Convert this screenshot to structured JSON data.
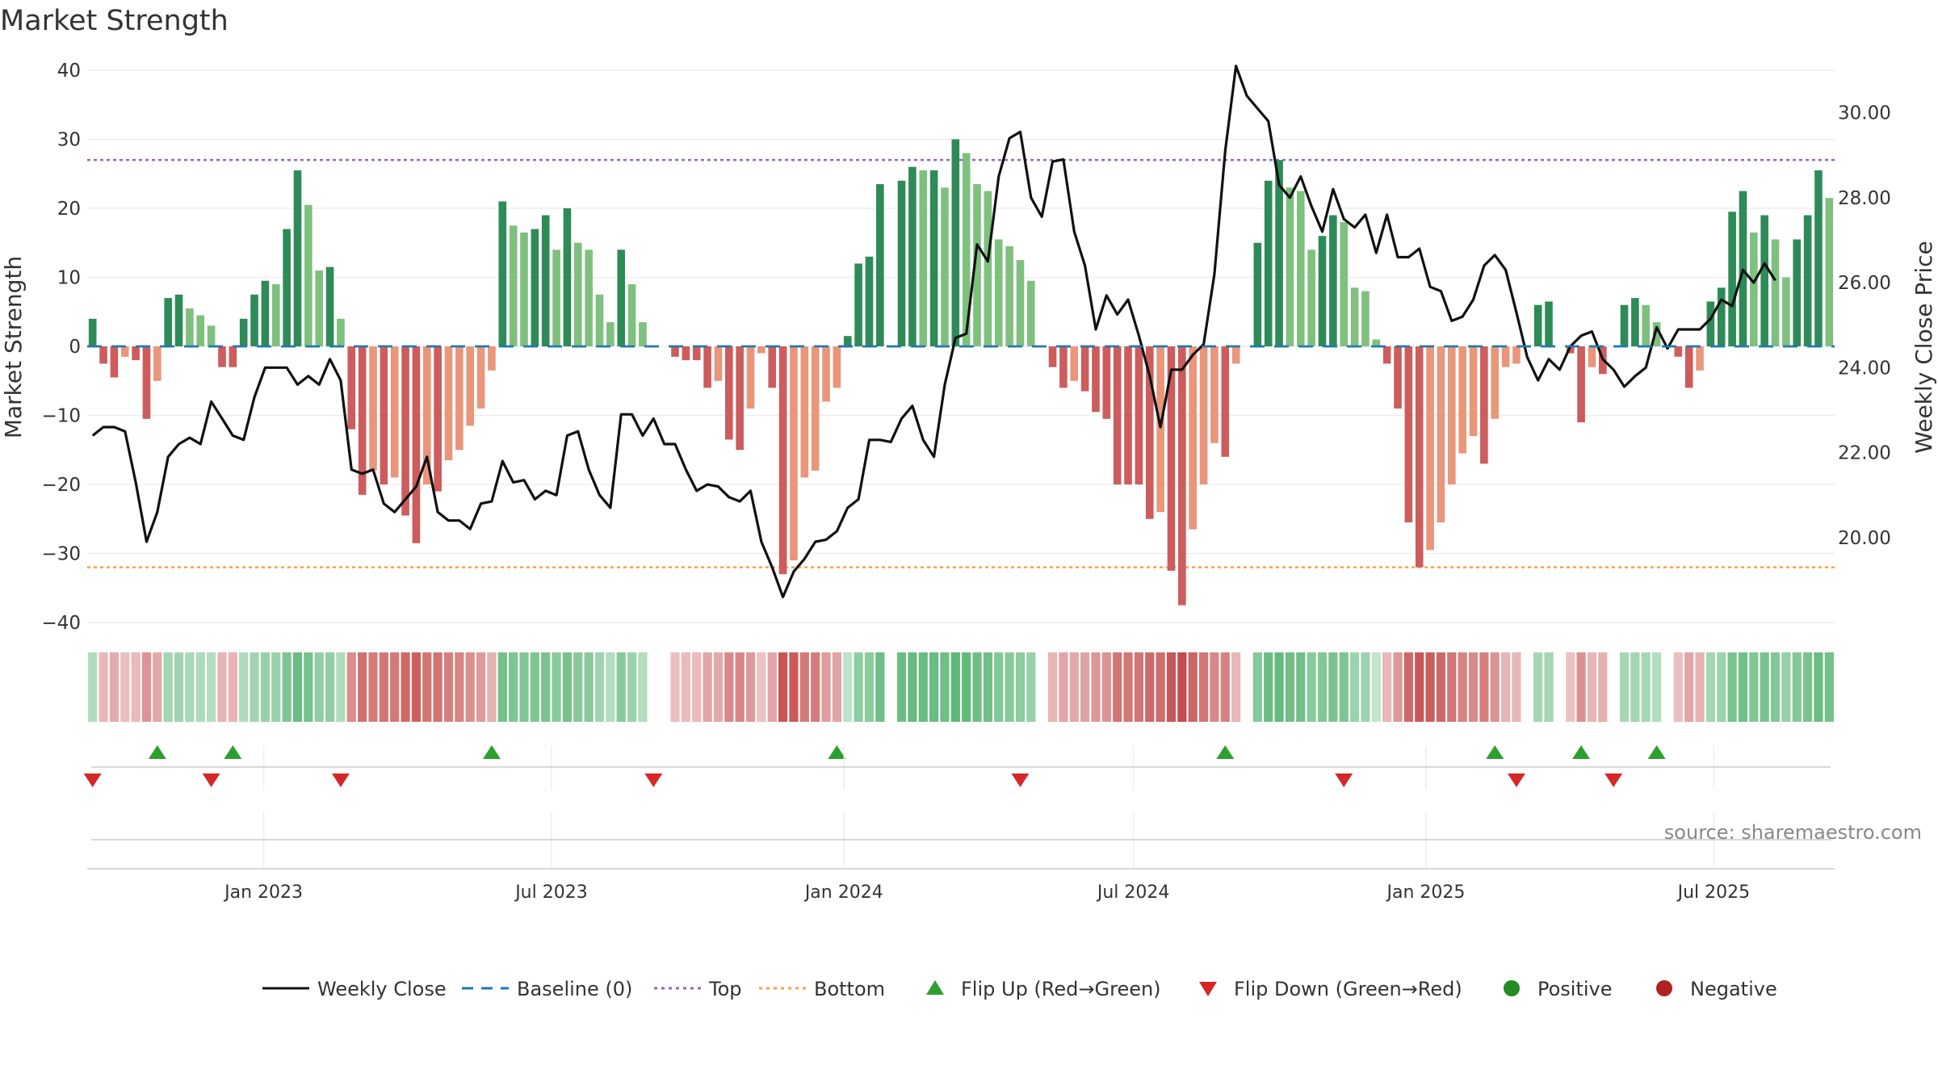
{
  "chart_data": {
    "type": "bar",
    "title": "Market Strength",
    "ylabel_left": "Market Strength",
    "ylabel_right": "Weekly Close Price",
    "ylim_left": [
      -40,
      40
    ],
    "yticks_left": [
      "40",
      "30",
      "20",
      "10",
      "0",
      "−10",
      "−20",
      "−30",
      "−40"
    ],
    "ylim_right": [
      18.0,
      31.0
    ],
    "yticks_right": [
      "30.00",
      "28.00",
      "26.00",
      "24.00",
      "22.00",
      "20.00"
    ],
    "x_start": "2022-09-12",
    "x_end": "2025-09-15",
    "x_ticks": [
      {
        "label": "Jan 2023",
        "date": "2023-01-01"
      },
      {
        "label": "Jul 2023",
        "date": "2023-07-01"
      },
      {
        "label": "Jan 2024",
        "date": "2024-01-01"
      },
      {
        "label": "Jul 2024",
        "date": "2024-07-01"
      },
      {
        "label": "Jan 2025",
        "date": "2025-01-01"
      },
      {
        "label": "Jul 2025",
        "date": "2025-07-01"
      }
    ],
    "top_level": 27,
    "bottom_level": -32,
    "strength": [
      4,
      -2.5,
      -4.5,
      -1.5,
      -2,
      -10.5,
      -5,
      7,
      7.5,
      5.5,
      4.5,
      3,
      -3,
      -3,
      4,
      7.5,
      9.5,
      9,
      17,
      25.5,
      20.5,
      11,
      11.5,
      4,
      -12,
      -21.5,
      -18,
      -20,
      -19,
      -24.5,
      -28.5,
      -20,
      -21,
      -16.5,
      -15,
      -11.5,
      -9,
      -3.5,
      21,
      17.5,
      16.5,
      17,
      19,
      14,
      20,
      15,
      14,
      7.5,
      3.5,
      14,
      9,
      3.5,
      0,
      0,
      -1.5,
      -2,
      -2,
      -6,
      -5,
      -13.5,
      -15,
      -9,
      -1,
      -6,
      -33,
      -31,
      -19,
      -18,
      -8,
      -6,
      1.5,
      12,
      13,
      23.5,
      0,
      24,
      26,
      25.5,
      25.5,
      23,
      30,
      28,
      23.5,
      22.5,
      15.5,
      14.5,
      12.5,
      9.5,
      0,
      -3,
      -6,
      -5,
      -6.5,
      -9.5,
      -10.5,
      -20,
      -20,
      -20,
      -25,
      -24,
      -32.5,
      -37.5,
      -26.5,
      -20,
      -14,
      -16,
      -2.5,
      0,
      15,
      24,
      27,
      23,
      22.5,
      14,
      16,
      19,
      18,
      8.5,
      8,
      1,
      -2.5,
      -9,
      -25.5,
      -32,
      -29.5,
      -25.5,
      -20,
      -15.5,
      -13,
      -17,
      -10.5,
      -3,
      -2.5,
      0,
      6,
      6.5,
      0,
      -1,
      -11,
      -3,
      -4,
      0,
      6,
      7,
      6,
      3.5,
      0,
      -1.5,
      -6,
      -3.5,
      6.5,
      8.5,
      19.5,
      22.5,
      16.5,
      19,
      15.5,
      10,
      15.5,
      19,
      25.5,
      21.5
    ],
    "close_price": [
      22.4,
      22.6,
      22.6,
      22.5,
      21.3,
      19.9,
      20.6,
      21.9,
      22.2,
      22.35,
      22.2,
      23.2,
      22.8,
      22.4,
      22.3,
      23.3,
      24.0,
      24.0,
      24.0,
      23.6,
      23.8,
      23.6,
      24.2,
      23.7,
      21.6,
      21.5,
      21.6,
      20.8,
      20.6,
      20.9,
      21.2,
      21.9,
      20.6,
      20.4,
      20.4,
      20.2,
      20.8,
      20.85,
      21.8,
      21.3,
      21.35,
      20.9,
      21.1,
      21.0,
      22.4,
      22.5,
      21.6,
      21.0,
      20.7,
      22.9,
      22.9,
      22.4,
      22.8,
      22.2,
      22.2,
      21.6,
      21.1,
      21.25,
      21.2,
      20.95,
      20.85,
      21.1,
      19.9,
      19.3,
      18.6,
      19.2,
      19.5,
      19.9,
      19.95,
      20.15,
      20.7,
      20.9,
      22.3,
      22.3,
      22.25,
      22.8,
      23.1,
      22.3,
      21.9,
      23.6,
      24.7,
      24.8,
      26.9,
      26.5,
      28.5,
      29.4,
      29.55,
      28.0,
      27.55,
      28.85,
      28.9,
      27.2,
      26.4,
      24.9,
      25.7,
      25.25,
      25.6,
      24.75,
      23.8,
      22.6,
      23.95,
      23.95,
      24.3,
      24.55,
      26.2,
      29.1,
      31.1,
      30.4,
      30.1,
      29.8,
      28.3,
      28.0,
      28.5,
      27.8,
      27.2,
      28.2,
      27.5,
      27.3,
      27.6,
      26.7,
      27.6,
      26.6,
      26.6,
      26.8,
      25.9,
      25.8,
      25.1,
      25.2,
      25.6,
      26.4,
      26.65,
      26.3,
      25.3,
      24.25,
      23.7,
      24.2,
      23.95,
      24.5,
      24.75,
      24.85,
      24.2,
      23.95,
      23.55,
      23.8,
      24.0,
      24.95,
      24.45,
      24.9,
      24.9,
      24.9,
      25.15,
      25.6,
      25.45,
      26.3,
      26.0,
      26.45,
      26.05
    ],
    "flip_up_weeks": [
      6,
      13,
      37,
      69,
      105,
      130,
      138,
      145
    ],
    "flip_down_weeks": [
      0,
      11,
      23,
      52,
      86,
      116,
      132,
      141
    ],
    "source": "source: sharemaestro.com",
    "legend": [
      {
        "label": "Weekly Close",
        "symbol": "solid-line",
        "color": "#111111"
      },
      {
        "label": "Baseline (0)",
        "symbol": "dashed-line",
        "color": "#1f77b4"
      },
      {
        "label": "Top",
        "symbol": "dotted-line",
        "color": "#9467bd"
      },
      {
        "label": "Bottom",
        "symbol": "dotted-line",
        "color": "#ff9f4a"
      },
      {
        "label": "Flip Up (Red→Green)",
        "symbol": "triangle-up",
        "color": "#2ca02c"
      },
      {
        "label": "Flip Down (Green→Red)",
        "symbol": "triangle-down",
        "color": "#d62728"
      },
      {
        "label": "Positive",
        "symbol": "circle",
        "color": "#228b22"
      },
      {
        "label": "Negative",
        "symbol": "circle",
        "color": "#b22222"
      }
    ],
    "colors": {
      "pos_dark": "#2e8b57",
      "pos_light": "#7fc07f",
      "neg_dark": "#cd5c5c",
      "neg_light": "#e9967a",
      "price_line": "#111111",
      "baseline": "#1f77b4",
      "top": "#9467bd",
      "bottom": "#ff9f4a"
    }
  }
}
